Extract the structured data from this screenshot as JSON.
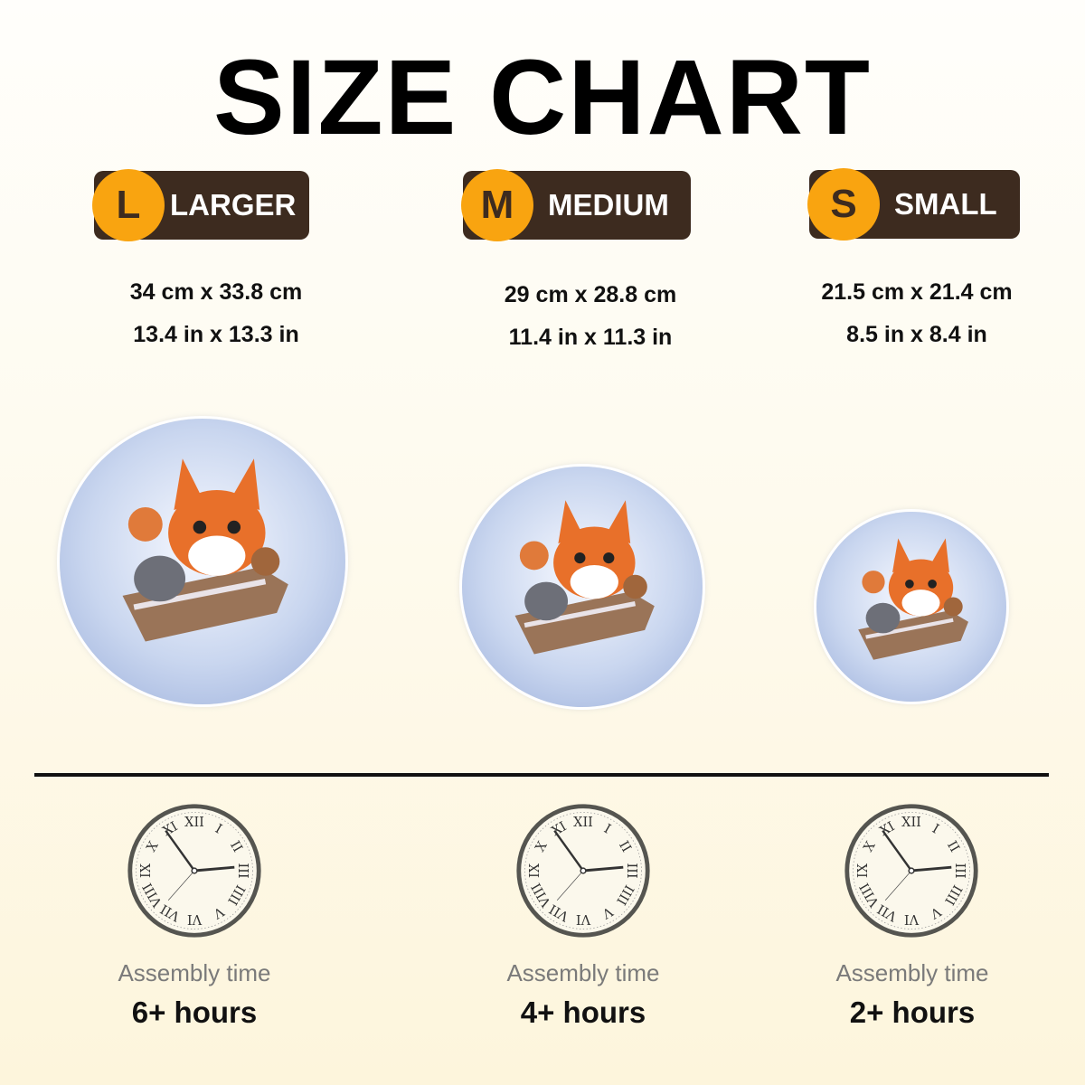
{
  "title": "SIZE CHART",
  "sizes": [
    {
      "letter": "L",
      "label": "LARGER",
      "dim_cm": "34 cm x 33.8 cm",
      "dim_in": "13.4 in x 13.3 in",
      "assembly_label": "Assembly time",
      "assembly_time": "6+ hours"
    },
    {
      "letter": "M",
      "label": "MEDIUM",
      "dim_cm": "29 cm x 28.8 cm",
      "dim_in": "11.4 in x 11.3 in",
      "assembly_label": "Assembly time",
      "assembly_time": "4+ hours"
    },
    {
      "letter": "S",
      "label": "SMALL",
      "dim_cm": "21.5 cm x 21.4 cm",
      "dim_in": "8.5 in x 8.4 in",
      "assembly_label": "Assembly time",
      "assembly_time": "2+ hours"
    }
  ],
  "colors": {
    "badge_bg": "#3d2b1f",
    "badge_circle": "#f9a410"
  },
  "clock_numerals": [
    "XII",
    "I",
    "II",
    "III",
    "IIII",
    "V",
    "VI",
    "VII",
    "VIII",
    "IX",
    "X",
    "XI"
  ]
}
